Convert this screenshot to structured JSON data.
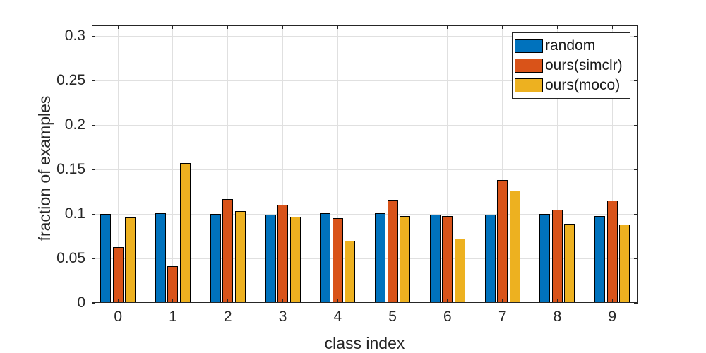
{
  "chart_data": {
    "type": "bar",
    "title": "",
    "xlabel": "class index",
    "ylabel": "fraction of examples",
    "categories": [
      "0",
      "1",
      "2",
      "3",
      "4",
      "5",
      "6",
      "7",
      "8",
      "9"
    ],
    "series": [
      {
        "name": "random",
        "color": "#0072BD",
        "values": [
          0.1,
          0.101,
          0.1,
          0.099,
          0.101,
          0.101,
          0.099,
          0.099,
          0.1,
          0.098
        ]
      },
      {
        "name": "ours(simclr)",
        "color": "#D95319",
        "values": [
          0.063,
          0.041,
          0.117,
          0.11,
          0.095,
          0.116,
          0.098,
          0.138,
          0.105,
          0.115
        ]
      },
      {
        "name": "ours(moco)",
        "color": "#EDB120",
        "values": [
          0.096,
          0.157,
          0.103,
          0.097,
          0.07,
          0.098,
          0.072,
          0.126,
          0.089,
          0.088
        ]
      }
    ],
    "ylim": [
      0,
      0.312
    ],
    "yticks": [
      0,
      0.05,
      0.1,
      0.15,
      0.2,
      0.25,
      0.3
    ],
    "ytick_labels": [
      "0",
      "0.05",
      "0.1",
      "0.15",
      "0.2",
      "0.25",
      "0.3"
    ],
    "grid": true,
    "legend_position": "top-right",
    "axis_color": "#262626",
    "grid_color": "#e0e0e0",
    "bar_edge_color": "#000000",
    "background_color": "#ffffff"
  }
}
